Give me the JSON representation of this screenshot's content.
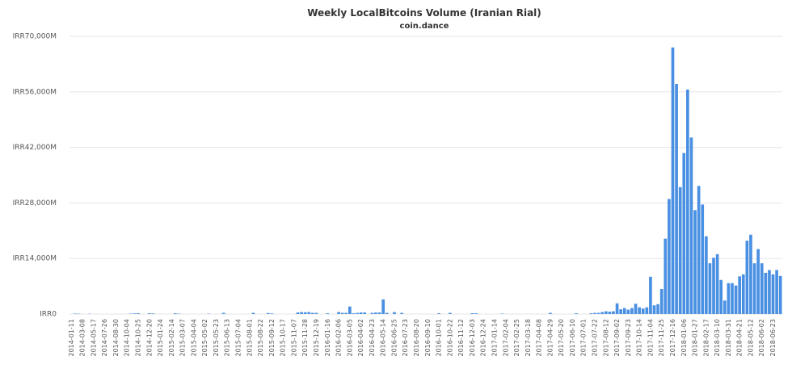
{
  "chart_data": {
    "type": "bar",
    "title": "Weekly LocalBitcoins Volume (Iranian Rial)",
    "subtitle": "coin.dance",
    "color": "#4a90e2",
    "grid": true,
    "ylim": [
      0,
      70000
    ],
    "yticks": [
      {
        "value": 0,
        "label": "IRR0"
      },
      {
        "value": 14000,
        "label": "IRR14,000M"
      },
      {
        "value": 28000,
        "label": "IRR28,000M"
      },
      {
        "value": 42000,
        "label": "IRR42,000M"
      },
      {
        "value": 56000,
        "label": "IRR56,000M"
      },
      {
        "value": 70000,
        "label": "IRR70,000M"
      }
    ],
    "categories": [
      "2014-01-11",
      null,
      null,
      "2014-03-08",
      null,
      null,
      "2014-05-17",
      null,
      null,
      "2014-07-26",
      null,
      null,
      "2014-08-30",
      null,
      null,
      "2014-10-04",
      null,
      null,
      "2014-10-25",
      null,
      null,
      "2014-12-20",
      null,
      null,
      "2015-01-24",
      null,
      null,
      "2015-02-14",
      null,
      null,
      "2015-03-07",
      null,
      null,
      "2015-04-04",
      null,
      null,
      "2015-05-02",
      null,
      null,
      "2015-05-23",
      null,
      null,
      "2015-06-13",
      null,
      null,
      "2015-07-04",
      null,
      null,
      "2015-08-01",
      null,
      null,
      "2015-08-22",
      null,
      null,
      "2015-09-12",
      null,
      null,
      "2015-10-17",
      null,
      null,
      "2015-11-07",
      null,
      null,
      "2015-11-28",
      null,
      null,
      "2015-12-19",
      null,
      null,
      "2016-01-16",
      null,
      null,
      "2016-02-06",
      null,
      null,
      "2016-03-05",
      null,
      null,
      "2016-04-02",
      null,
      null,
      "2016-04-23",
      null,
      null,
      "2016-05-14",
      null,
      null,
      "2016-06-25",
      null,
      null,
      "2016-07-23",
      null,
      null,
      "2016-08-20",
      null,
      null,
      "2016-09-10",
      null,
      null,
      "2016-10-01",
      null,
      null,
      "2016-10-22",
      null,
      null,
      "2016-11-12",
      null,
      null,
      "2016-12-03",
      null,
      null,
      "2016-12-24",
      null,
      null,
      "2017-01-14",
      null,
      null,
      "2017-02-04",
      null,
      null,
      "2017-02-25",
      null,
      null,
      "2017-03-18",
      null,
      null,
      "2017-04-08",
      null,
      null,
      "2017-04-29",
      null,
      null,
      "2017-05-20",
      null,
      null,
      "2017-06-10",
      null,
      null,
      "2017-07-01",
      null,
      null,
      "2017-07-22",
      null,
      null,
      "2017-08-12",
      null,
      null,
      "2017-09-02",
      null,
      null,
      "2017-09-23",
      null,
      null,
      "2017-10-14",
      null,
      null,
      "2017-11-04",
      null,
      null,
      "2017-11-25",
      null,
      null,
      "2017-12-16",
      null,
      null,
      "2018-01-06",
      null,
      null,
      "2018-01-27",
      null,
      null,
      "2018-02-17",
      null,
      null,
      "2018-03-10",
      null,
      null,
      "2018-03-31",
      null,
      null,
      "2018-04-21",
      null,
      null,
      "2018-05-12",
      null,
      null,
      "2018-06-02",
      null,
      null,
      "2018-06-23",
      null,
      null
    ],
    "values": [
      0,
      120,
      80,
      0,
      0,
      60,
      0,
      0,
      0,
      0,
      0,
      0,
      0,
      0,
      0,
      0,
      100,
      150,
      200,
      0,
      0,
      200,
      150,
      0,
      0,
      0,
      0,
      0,
      200,
      100,
      0,
      0,
      0,
      0,
      0,
      0,
      0,
      80,
      0,
      0,
      0,
      300,
      0,
      0,
      0,
      0,
      0,
      0,
      0,
      300,
      0,
      0,
      0,
      250,
      150,
      0,
      0,
      0,
      0,
      0,
      0,
      400,
      500,
      450,
      500,
      300,
      300,
      0,
      0,
      200,
      0,
      0,
      500,
      300,
      300,
      1900,
      200,
      300,
      400,
      400,
      0,
      300,
      400,
      400,
      3700,
      300,
      0,
      500,
      0,
      300,
      0,
      0,
      0,
      0,
      0,
      0,
      0,
      0,
      0,
      200,
      0,
      0,
      300,
      0,
      0,
      0,
      0,
      0,
      200,
      200,
      0,
      0,
      0,
      0,
      0,
      0,
      100,
      0,
      0,
      0,
      0,
      0,
      0,
      0,
      0,
      0,
      0,
      0,
      0,
      300,
      0,
      0,
      0,
      0,
      0,
      0,
      200,
      0,
      0,
      0,
      200,
      300,
      300,
      500,
      700,
      600,
      700,
      2700,
      1200,
      1500,
      1100,
      1500,
      2600,
      1700,
      1400,
      1700,
      9400,
      2200,
      2500,
      6300,
      19000,
      29000,
      67200,
      58000,
      32000,
      40600,
      56600,
      44500,
      26200,
      32300,
      27600,
      19600,
      12800,
      14200,
      15100,
      8600,
      3400,
      7800,
      7800,
      7200,
      9500,
      10000,
      18500,
      20000,
      12800,
      16400,
      12800,
      10400,
      11100,
      10000,
      11100,
      9600
    ]
  }
}
